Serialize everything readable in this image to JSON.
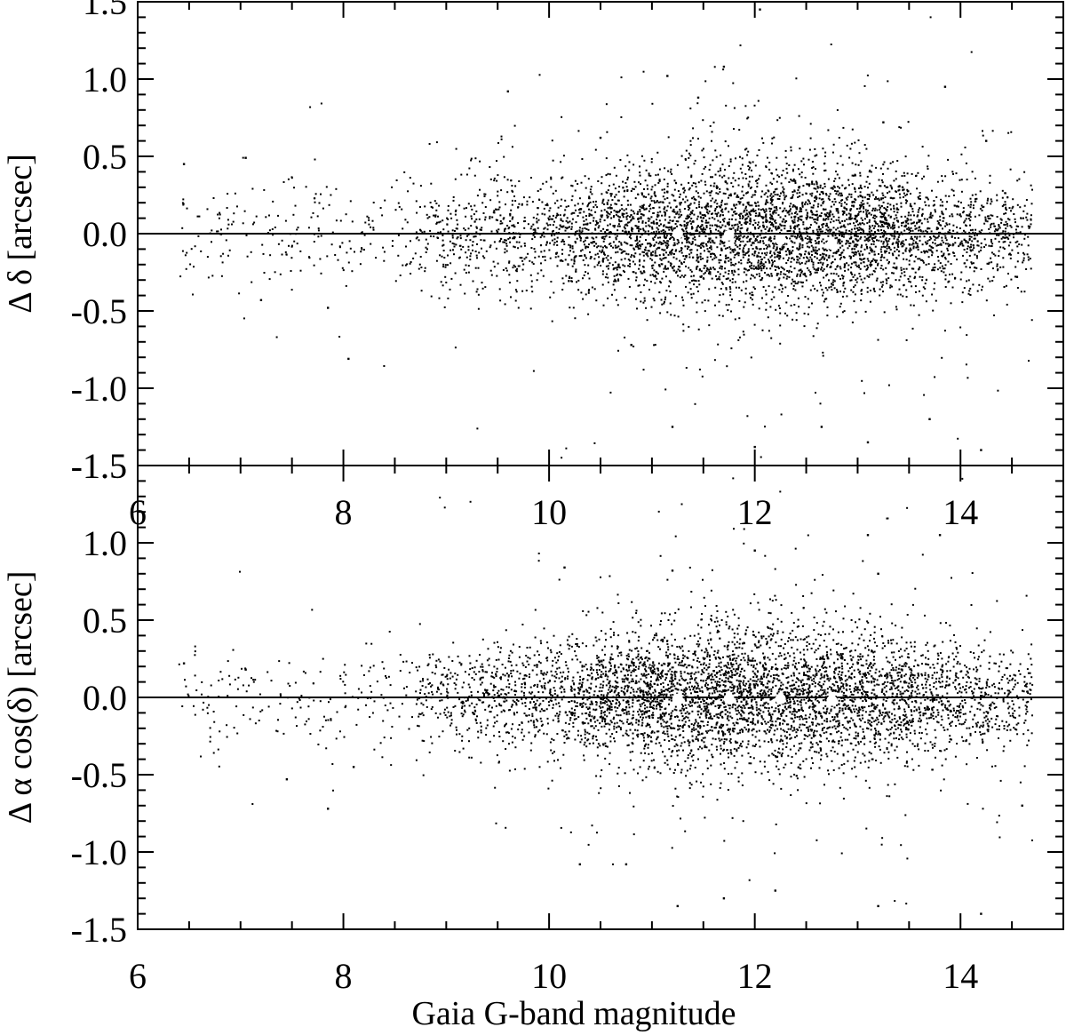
{
  "chart_data": [
    {
      "type": "scatter",
      "panel": "top",
      "ylabel": "Δ δ [arcsec]",
      "xlabel": "",
      "xlim": [
        6,
        15
      ],
      "ylim": [
        -1.5,
        1.5
      ],
      "x_ticks": [
        "6",
        "8",
        "10",
        "12",
        "14"
      ],
      "y_ticks": [
        "-1.5",
        "-1.0",
        "-0.5",
        "0.0",
        "0.5",
        "1.0",
        "1.5"
      ],
      "zero_line": 0,
      "grid": false,
      "legend": "none",
      "point_color": "#000000",
      "median_color": "#ffffff",
      "cloud": {
        "approx_point_count": 9000,
        "x_range": [
          6.4,
          14.7
        ],
        "peak_density_x": 12.1,
        "y_scatter_sigma": 0.2
      },
      "median_points": [
        {
          "x": 11.25,
          "y": 0.0
        },
        {
          "x": 11.75,
          "y": -0.01
        },
        {
          "x": 12.25,
          "y": -0.04
        },
        {
          "x": 12.75,
          "y": -0.07
        }
      ],
      "notable_points": [
        {
          "x": 6.45,
          "y": 0.45
        },
        {
          "x": 7.05,
          "y": 0.49
        },
        {
          "x": 7.2,
          "y": -0.43
        },
        {
          "x": 7.85,
          "y": -0.48
        },
        {
          "x": 8.05,
          "y": -0.81
        },
        {
          "x": 9.6,
          "y": 0.92
        },
        {
          "x": 10.5,
          "y": 0.62
        },
        {
          "x": 11.15,
          "y": 1.02
        },
        {
          "x": 11.45,
          "y": 0.88
        },
        {
          "x": 11.7,
          "y": 1.08
        },
        {
          "x": 12.05,
          "y": 1.45
        },
        {
          "x": 13.25,
          "y": 0.72
        },
        {
          "x": 13.85,
          "y": 0.95
        },
        {
          "x": 14.25,
          "y": 0.6
        },
        {
          "x": 10.8,
          "y": -0.72
        },
        {
          "x": 11.2,
          "y": -1.25
        },
        {
          "x": 12.0,
          "y": -1.38
        },
        {
          "x": 12.65,
          "y": -1.25
        },
        {
          "x": 13.1,
          "y": -1.35
        },
        {
          "x": 13.7,
          "y": -1.2
        },
        {
          "x": 14.2,
          "y": -1.4
        },
        {
          "x": 14.55,
          "y": -0.28
        }
      ]
    },
    {
      "type": "scatter",
      "panel": "bottom",
      "ylabel": "Δ α cos(δ) [arcsec]",
      "xlabel": "Gaia G-band magnitude",
      "xlim": [
        6,
        15
      ],
      "ylim": [
        -1.5,
        1.5
      ],
      "x_ticks": [
        "6",
        "8",
        "10",
        "12",
        "14"
      ],
      "y_ticks": [
        "-1.5",
        "-1.0",
        "-0.5",
        "0.0",
        "0.5",
        "1.0",
        "1.5"
      ],
      "zero_line": 0,
      "grid": false,
      "legend": "none",
      "point_color": "#000000",
      "median_color": "#ffffff",
      "cloud": {
        "approx_point_count": 9000,
        "x_range": [
          6.4,
          14.7
        ],
        "peak_density_x": 12.0,
        "y_scatter_sigma": 0.2
      },
      "median_points": [
        {
          "x": 11.25,
          "y": -0.01
        },
        {
          "x": 11.75,
          "y": -0.01
        },
        {
          "x": 12.25,
          "y": -0.01
        },
        {
          "x": 12.75,
          "y": -0.02
        }
      ],
      "notable_points": [
        {
          "x": 6.45,
          "y": 0.22
        },
        {
          "x": 7.05,
          "y": 0.18
        },
        {
          "x": 7.45,
          "y": -0.53
        },
        {
          "x": 7.85,
          "y": -0.72
        },
        {
          "x": 8.1,
          "y": -0.45
        },
        {
          "x": 10.15,
          "y": 0.84
        },
        {
          "x": 11.2,
          "y": 0.82
        },
        {
          "x": 12.0,
          "y": 0.95
        },
        {
          "x": 13.1,
          "y": 1.05
        },
        {
          "x": 13.2,
          "y": 0.8
        },
        {
          "x": 13.8,
          "y": 1.05
        },
        {
          "x": 10.3,
          "y": -1.08
        },
        {
          "x": 10.75,
          "y": -1.08
        },
        {
          "x": 11.25,
          "y": -1.35
        },
        {
          "x": 11.7,
          "y": -1.3
        },
        {
          "x": 12.2,
          "y": -1.25
        },
        {
          "x": 13.2,
          "y": -1.35
        },
        {
          "x": 14.2,
          "y": -1.4
        },
        {
          "x": 14.6,
          "y": -0.7
        }
      ]
    }
  ]
}
